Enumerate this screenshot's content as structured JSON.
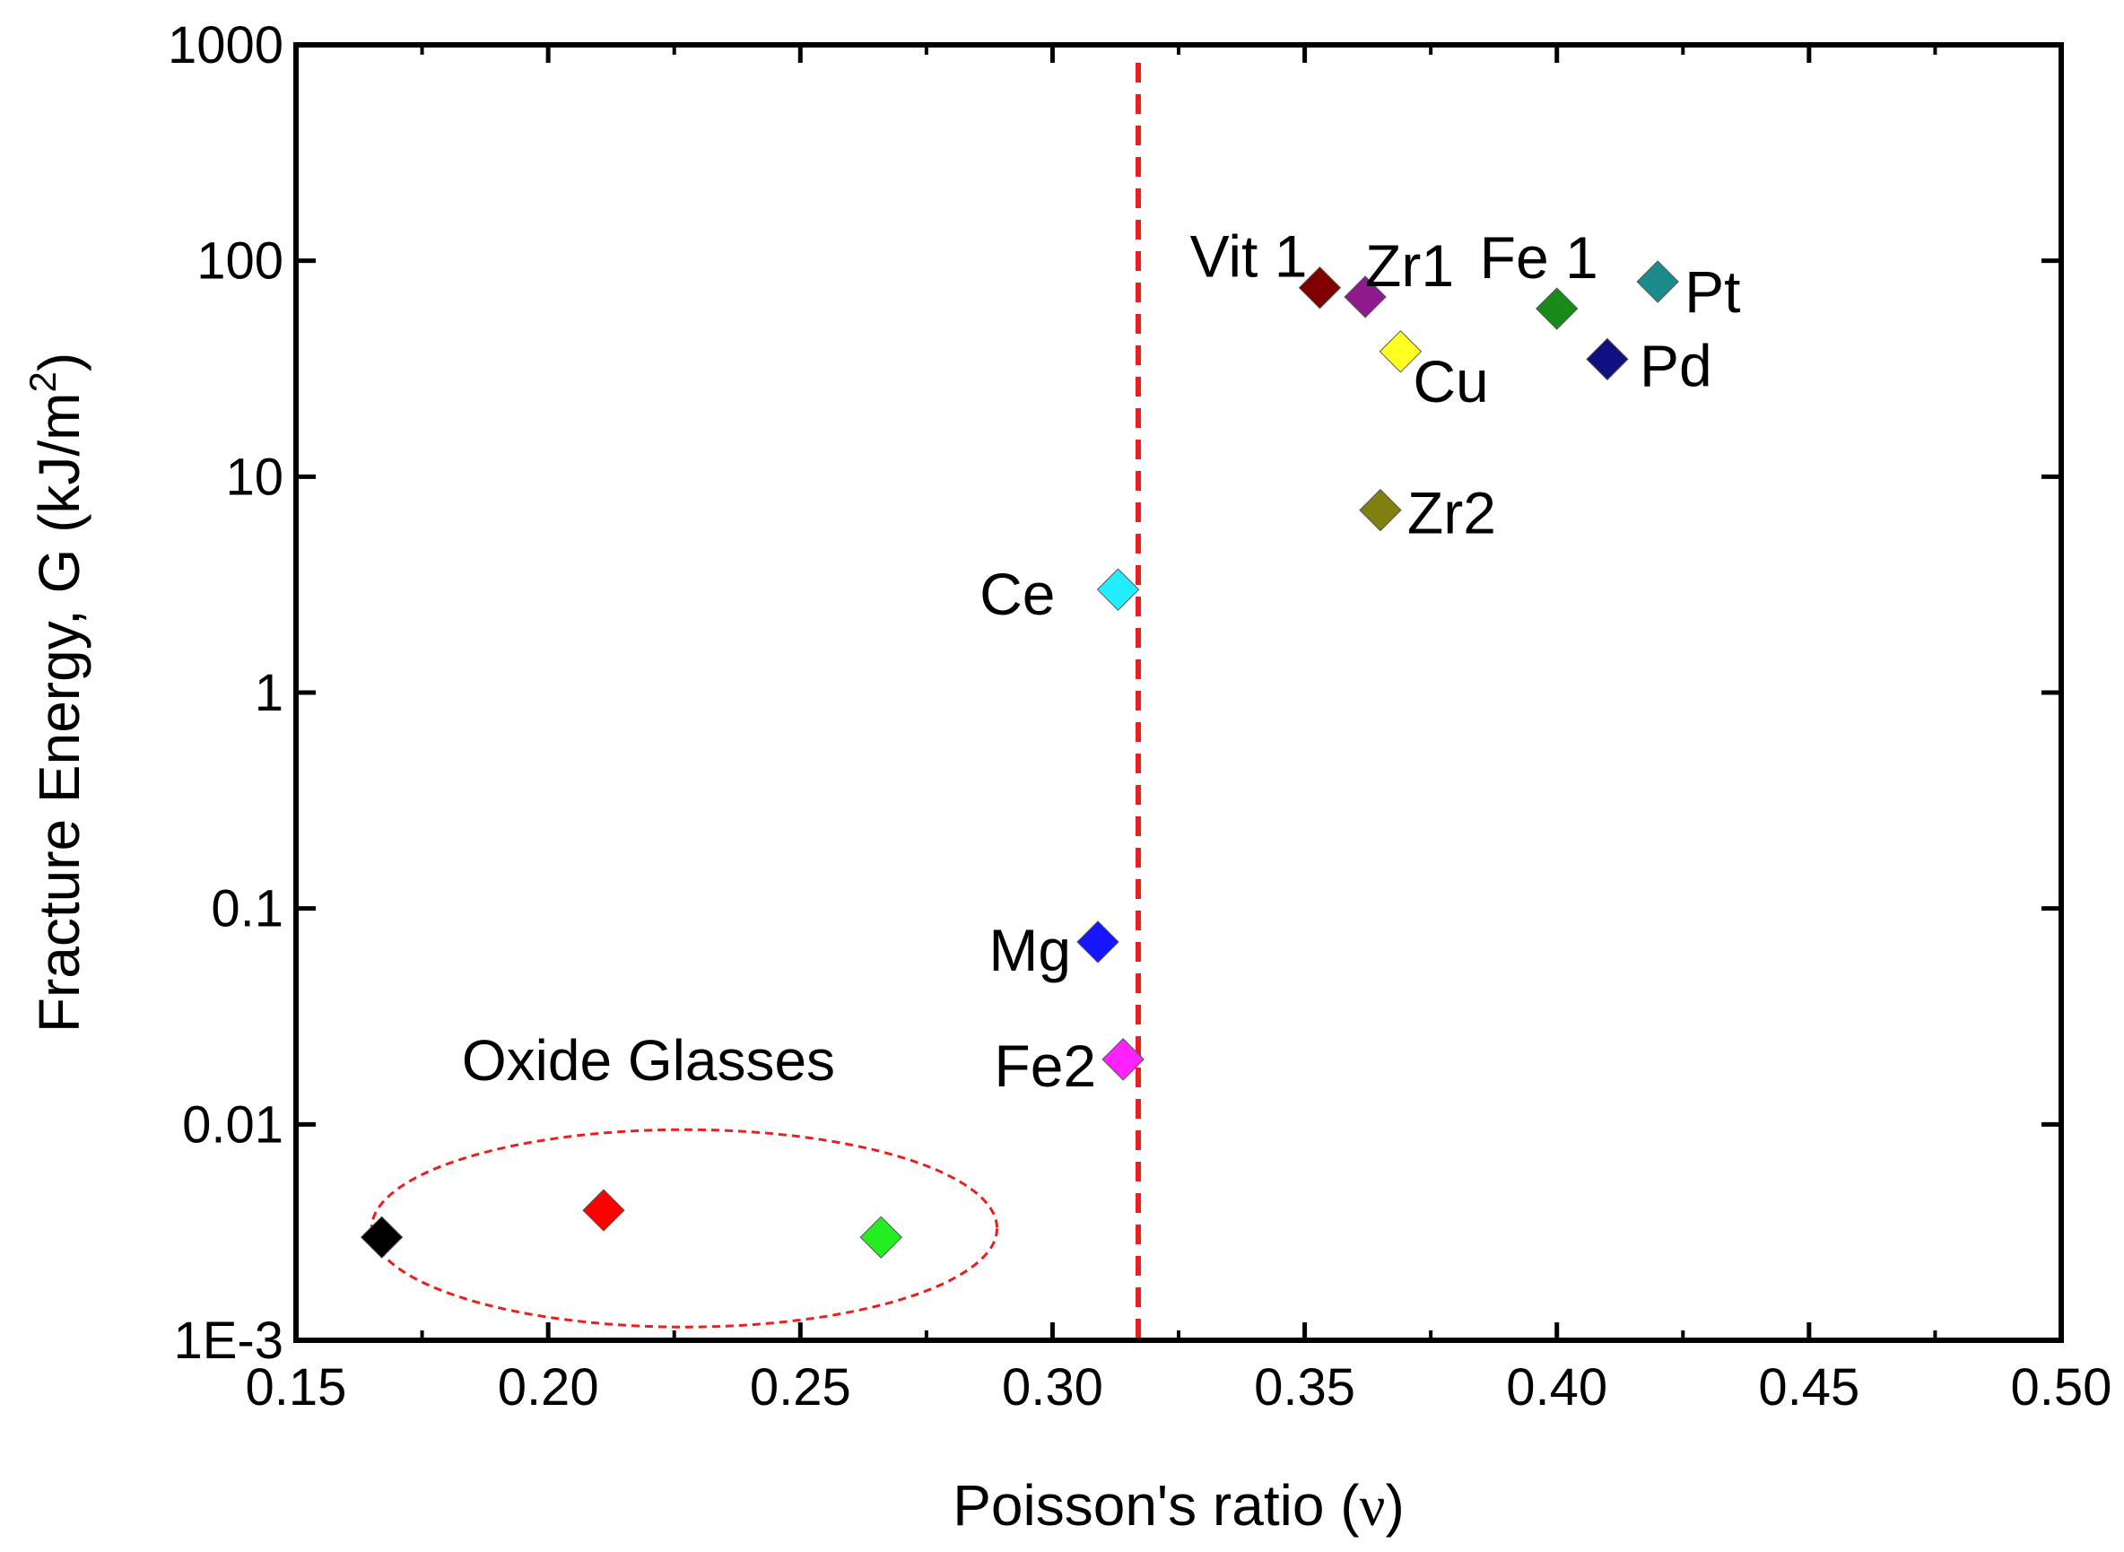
{
  "chart_data": {
    "type": "scatter",
    "title": "",
    "xlabel": "Poisson's ratio (",
    "xlabel_symbol": "ν",
    "xlabel_end": ")",
    "ylabel": "Fracture Energy, G (kJ/m",
    "ylabel_sup": "2",
    "ylabel_end": ")",
    "xlim": [
      0.15,
      0.5
    ],
    "ylim": [
      0.001,
      1000
    ],
    "yscale": "log",
    "grid": false,
    "x_ticks": [
      "0.15",
      "0.20",
      "0.25",
      "0.30",
      "0.35",
      "0.40",
      "0.45",
      "0.50"
    ],
    "x_tick_values": [
      0.15,
      0.2,
      0.25,
      0.3,
      0.35,
      0.4,
      0.45,
      0.5
    ],
    "y_ticks": [
      "1E-3",
      "0.01",
      "0.1",
      "1",
      "10",
      "100",
      "1000"
    ],
    "y_tick_values": [
      0.001,
      0.01,
      0.1,
      1,
      10,
      100,
      1000
    ],
    "reference_line": {
      "x": 0.317,
      "color": "#e8201e",
      "style": "dashed"
    },
    "points": [
      {
        "label": "",
        "x": 0.167,
        "y": 0.003,
        "color": "#000000"
      },
      {
        "label": "",
        "x": 0.211,
        "y": 0.004,
        "color": "#ff0000"
      },
      {
        "label": "",
        "x": 0.266,
        "y": 0.003,
        "color": "#22ee22"
      },
      {
        "label": "Mg",
        "x": 0.309,
        "y": 0.07,
        "color": "#1515ff"
      },
      {
        "label": "Fe2",
        "x": 0.314,
        "y": 0.02,
        "color": "#ff22ff"
      },
      {
        "label": "Ce",
        "x": 0.313,
        "y": 3,
        "color": "#22eeff"
      },
      {
        "label": "Vit 1",
        "x": 0.353,
        "y": 75,
        "color": "#800000"
      },
      {
        "label": "Zr1",
        "x": 0.362,
        "y": 68,
        "color": "#8e1a8e"
      },
      {
        "label": "Cu",
        "x": 0.369,
        "y": 38,
        "color": "#ffff22"
      },
      {
        "label": "Zr2",
        "x": 0.365,
        "y": 7,
        "color": "#808010"
      },
      {
        "label": "Fe 1",
        "x": 0.4,
        "y": 60,
        "color": "#178a17"
      },
      {
        "label": "Pd",
        "x": 0.41,
        "y": 35,
        "color": "#101080"
      },
      {
        "label": "Pt",
        "x": 0.42,
        "y": 80,
        "color": "#1a8a8a"
      }
    ],
    "annotations": [
      {
        "text": "Oxide Glasses",
        "x_center": 0.227,
        "y": 0.0033,
        "x_radius": 0.062,
        "color": "#e8201e"
      }
    ]
  }
}
